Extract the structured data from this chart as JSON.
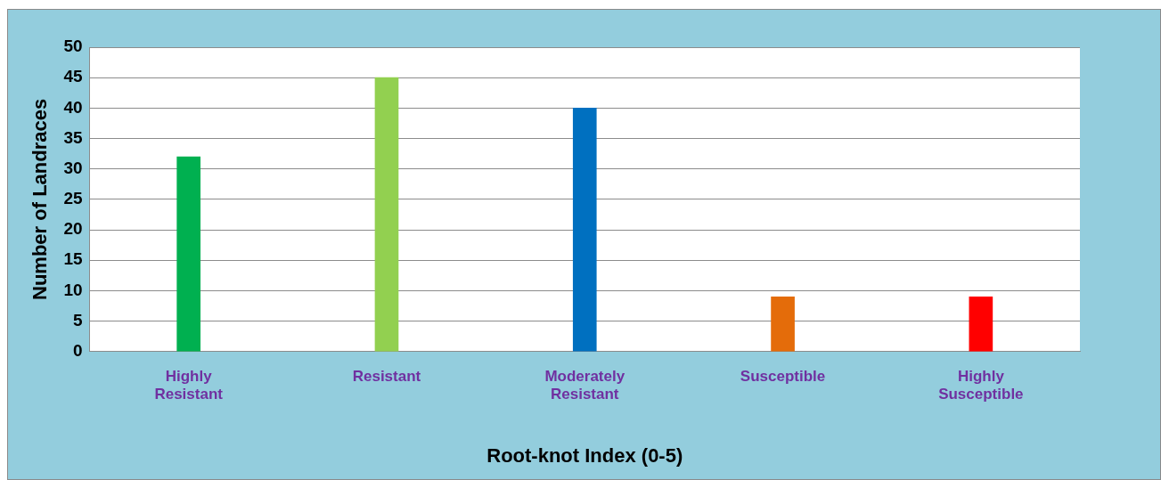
{
  "chart_data": {
    "type": "bar",
    "xlabel": "Root-knot Index (0-5)",
    "ylabel": "Number of Landraces",
    "categories": [
      [
        "Highly",
        "Resistant"
      ],
      [
        "Resistant"
      ],
      [
        "Moderately",
        "Resistant"
      ],
      [
        "Susceptible"
      ],
      [
        "Highly",
        "Susceptible"
      ]
    ],
    "values": [
      32,
      45,
      40,
      9,
      9
    ],
    "colors": [
      "#00b050",
      "#92d050",
      "#0070c0",
      "#e46c0a",
      "#ff0000"
    ],
    "ylim": [
      0,
      50
    ],
    "yticks": [
      0,
      5,
      10,
      15,
      20,
      25,
      30,
      35,
      40,
      45,
      50
    ],
    "grid": "y",
    "legend": false
  }
}
